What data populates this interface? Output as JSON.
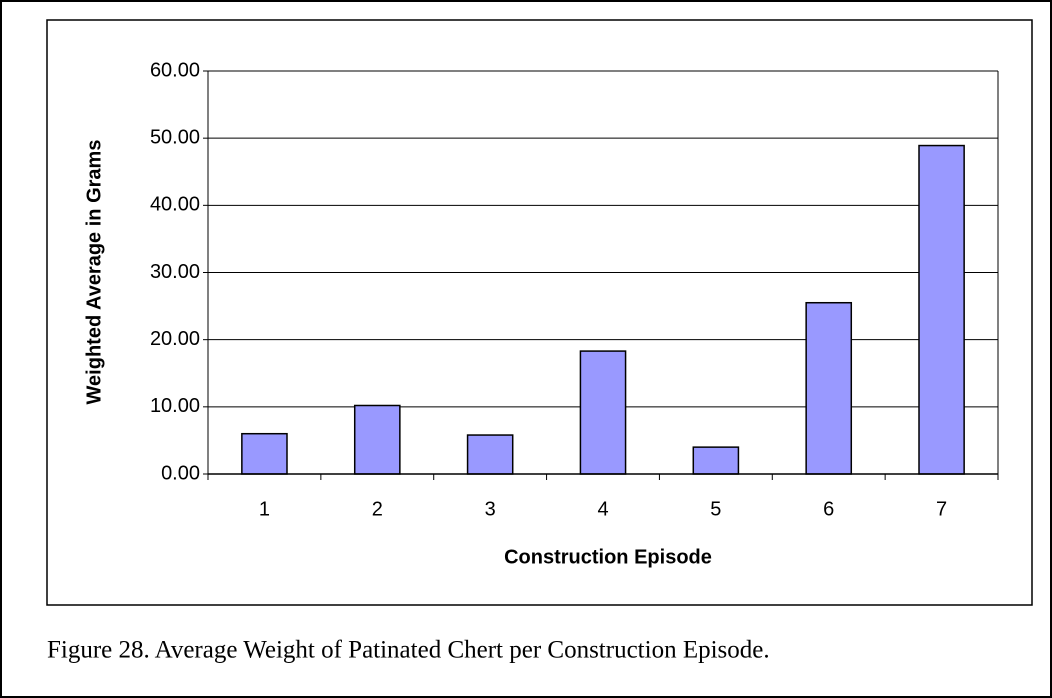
{
  "chart_data": {
    "type": "bar",
    "x_label": "Construction Episode",
    "y_label": "Weighted Average in Grams",
    "categories": [
      "1",
      "2",
      "3",
      "4",
      "5",
      "6",
      "7"
    ],
    "values": [
      6.0,
      10.2,
      5.8,
      18.3,
      4.0,
      25.5,
      48.9
    ],
    "color": "#9999ff",
    "ylim": [
      0,
      60
    ],
    "yticks": [
      {
        "value": 0,
        "label": "0.00"
      },
      {
        "value": 10,
        "label": "10.00"
      },
      {
        "value": 20,
        "label": "20.00"
      },
      {
        "value": 30,
        "label": "30.00"
      },
      {
        "value": 40,
        "label": "40.00"
      },
      {
        "value": 50,
        "label": "50.00"
      },
      {
        "value": 60,
        "label": "60.00"
      }
    ],
    "grid": true,
    "caption": "Figure 28. Average Weight of Patinated Chert per Construction Episode."
  }
}
